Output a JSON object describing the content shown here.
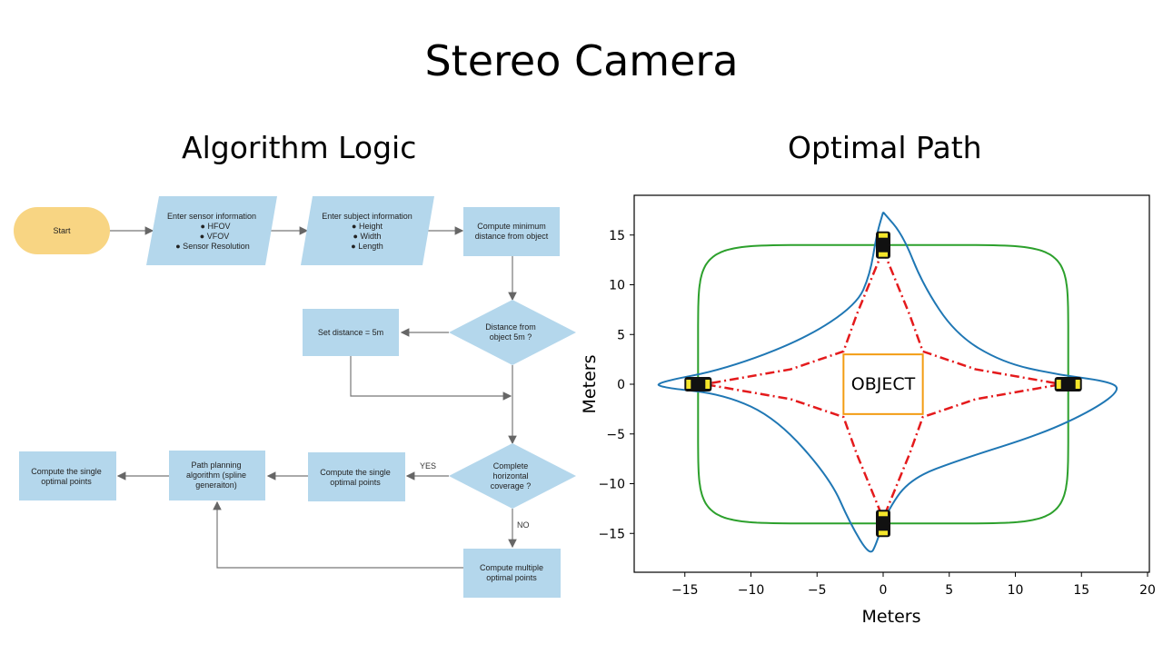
{
  "title": "Stereo Camera",
  "left_heading": "Algorithm Logic",
  "right_heading": "Optimal Path",
  "flowchart": {
    "start": "Start",
    "sensor_info": [
      "Enter sensor information",
      "● HFOV",
      "● VFOV",
      "● Sensor Resolution"
    ],
    "subject_info": [
      "Enter subject information",
      "● Height",
      "● Width",
      "● Length"
    ],
    "compute_min_distance": [
      "Compute minimum",
      "distance from object"
    ],
    "distance_decision": [
      "Distance from",
      "object 5m ?"
    ],
    "set_distance": "Set distance = 5m",
    "coverage_decision": [
      "Complete",
      "horizontal",
      "coverage ?"
    ],
    "yes_label": "YES",
    "no_label": "NO",
    "compute_single": [
      "Compute the single",
      "optimal points"
    ],
    "path_planning": [
      "Path planning",
      "algorithm (spline",
      "generaiton)"
    ],
    "compute_single_final": [
      "Compute the single",
      "optimal points"
    ],
    "compute_multiple": [
      "Compute multiple",
      "optimal points"
    ]
  },
  "chart_data": {
    "type": "line",
    "xlabel": "Meters",
    "ylabel": "Meters",
    "xlim": [
      -19,
      20
    ],
    "ylim": [
      -19,
      19
    ],
    "xticks": [
      -15,
      -10,
      -5,
      0,
      5,
      10,
      15,
      20
    ],
    "yticks": [
      15,
      10,
      5,
      0,
      -5,
      -10,
      -15
    ],
    "object_label": "OBJECT",
    "object_box": {
      "x": [
        -3,
        3
      ],
      "y": [
        -3,
        3
      ]
    },
    "camera_positions": [
      [
        0,
        14
      ],
      [
        14,
        0
      ],
      [
        0,
        -14
      ],
      [
        -14,
        0
      ]
    ],
    "series": [
      {
        "style": "green-solid",
        "description_color": "#2ca02c"
      },
      {
        "style": "blue-solid",
        "description_color": "#1f77b4"
      },
      {
        "style": "red-dashdot",
        "description_color": "#e41a1c"
      }
    ],
    "colors": {
      "green": "#2ca02c",
      "blue": "#1f77b4",
      "red": "#e41a1c",
      "object_border": "#f39c12",
      "flow_box": "#b4d7ec",
      "start": "#f8d583"
    }
  }
}
